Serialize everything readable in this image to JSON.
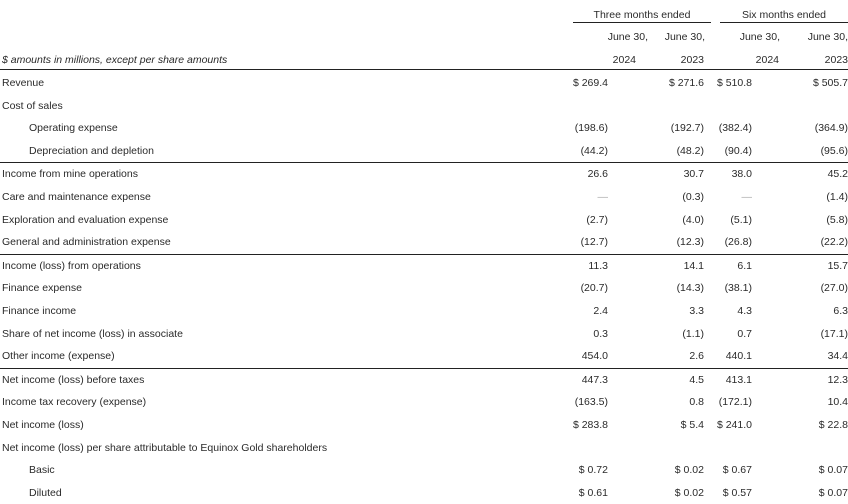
{
  "header": {
    "group_three": "Three months ended",
    "group_six": "Six months ended",
    "dates": [
      "June 30,",
      "June 30,",
      "June 30,",
      "June 30,"
    ],
    "years": [
      "2024",
      "2023",
      "2024",
      "2023"
    ],
    "units_note": "$ amounts in millions, except per share amounts"
  },
  "rows": [
    {
      "label": "Revenue",
      "values": [
        "$ 269.4",
        "$ 271.6",
        "$ 510.8",
        "$ 505.7"
      ]
    },
    {
      "label": "Cost of sales",
      "values": [
        "",
        "",
        "",
        ""
      ]
    },
    {
      "label": "Operating expense",
      "values": [
        "(198.6)",
        "(192.7)",
        "(382.4)",
        "(364.9)"
      ]
    },
    {
      "label": "Depreciation and depletion",
      "values": [
        "(44.2)",
        "(48.2)",
        "(90.4)",
        "(95.6)"
      ]
    },
    {
      "label": "Income from mine operations",
      "values": [
        "26.6",
        "30.7",
        "38.0",
        "45.2"
      ]
    },
    {
      "label": "Care and maintenance expense",
      "values": [
        "—",
        "(0.3)",
        "—",
        "(1.4)"
      ]
    },
    {
      "label": "Exploration and evaluation expense",
      "values": [
        "(2.7)",
        "(4.0)",
        "(5.1)",
        "(5.8)"
      ]
    },
    {
      "label": "General and administration expense",
      "values": [
        "(12.7)",
        "(12.3)",
        "(26.8)",
        "(22.2)"
      ]
    },
    {
      "label": "Income (loss) from operations",
      "values": [
        "11.3",
        "14.1",
        "6.1",
        "15.7"
      ]
    },
    {
      "label": "Finance expense",
      "values": [
        "(20.7)",
        "(14.3)",
        "(38.1)",
        "(27.0)"
      ]
    },
    {
      "label": "Finance income",
      "values": [
        "2.4",
        "3.3",
        "4.3",
        "6.3"
      ]
    },
    {
      "label": "Share of net income (loss) in associate",
      "values": [
        "0.3",
        "(1.1)",
        "0.7",
        "(17.1)"
      ]
    },
    {
      "label": "Other income (expense)",
      "values": [
        "454.0",
        "2.6",
        "440.1",
        "34.4"
      ]
    },
    {
      "label": "Net income (loss) before taxes",
      "values": [
        "447.3",
        "4.5",
        "413.1",
        "12.3"
      ]
    },
    {
      "label": "Income tax recovery (expense)",
      "values": [
        "(163.5)",
        "0.8",
        "(172.1)",
        "10.4"
      ]
    },
    {
      "label": "Net income (loss)",
      "values": [
        "$ 283.8",
        "$ 5.4",
        "$ 241.0",
        "$ 22.8"
      ]
    },
    {
      "label": "Net income (loss) per share attributable to Equinox Gold shareholders",
      "values": [
        "",
        "",
        "",
        ""
      ]
    },
    {
      "label": "Basic",
      "values": [
        "$ 0.72",
        "$ 0.02",
        "$ 0.67",
        "$ 0.07"
      ]
    },
    {
      "label": "Diluted",
      "values": [
        "$ 0.61",
        "$ 0.02",
        "$ 0.57",
        "$ 0.07"
      ]
    }
  ]
}
